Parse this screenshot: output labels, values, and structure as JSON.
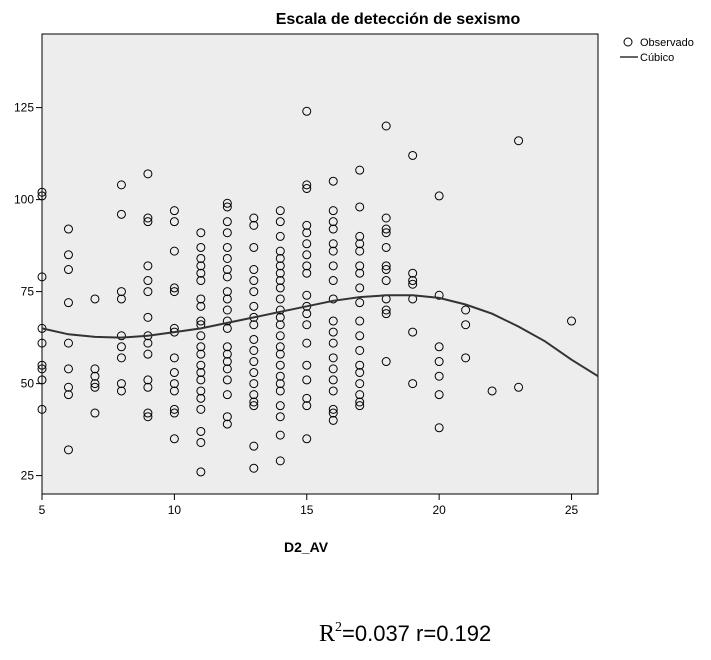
{
  "chart_data": {
    "type": "scatter",
    "title": "Escala de detección de sexismo",
    "xlabel": "D2_AV",
    "ylabel": "",
    "xlim": [
      5,
      26
    ],
    "ylim": [
      20,
      145
    ],
    "xticks": [
      5,
      10,
      15,
      20,
      25
    ],
    "yticks": [
      25,
      50,
      75,
      100,
      125
    ],
    "grid": false,
    "legend_position": "top-right",
    "legend": [
      {
        "label": "Observado",
        "marker": "circle"
      },
      {
        "label": "Cúbico",
        "marker": "line"
      }
    ],
    "series": [
      {
        "name": "Observado",
        "type": "scatter",
        "points": [
          [
            5,
            102
          ],
          [
            5,
            101
          ],
          [
            5,
            79
          ],
          [
            5,
            65
          ],
          [
            5,
            61
          ],
          [
            5,
            55
          ],
          [
            5,
            54
          ],
          [
            5,
            51
          ],
          [
            5,
            43
          ],
          [
            6,
            92
          ],
          [
            6,
            85
          ],
          [
            6,
            81
          ],
          [
            6,
            72
          ],
          [
            6,
            61
          ],
          [
            6,
            54
          ],
          [
            6,
            49
          ],
          [
            6,
            47
          ],
          [
            6,
            32
          ],
          [
            7,
            73
          ],
          [
            7,
            54
          ],
          [
            7,
            52
          ],
          [
            7,
            50
          ],
          [
            7,
            49
          ],
          [
            7,
            42
          ],
          [
            8,
            104
          ],
          [
            8,
            96
          ],
          [
            8,
            75
          ],
          [
            8,
            73
          ],
          [
            8,
            63
          ],
          [
            8,
            60
          ],
          [
            8,
            57
          ],
          [
            8,
            50
          ],
          [
            8,
            48
          ],
          [
            9,
            107
          ],
          [
            9,
            95
          ],
          [
            9,
            94
          ],
          [
            9,
            82
          ],
          [
            9,
            78
          ],
          [
            9,
            75
          ],
          [
            9,
            68
          ],
          [
            9,
            63
          ],
          [
            9,
            61
          ],
          [
            9,
            58
          ],
          [
            9,
            51
          ],
          [
            9,
            49
          ],
          [
            9,
            42
          ],
          [
            9,
            41
          ],
          [
            10,
            97
          ],
          [
            10,
            94
          ],
          [
            10,
            86
          ],
          [
            10,
            76
          ],
          [
            10,
            75
          ],
          [
            10,
            65
          ],
          [
            10,
            64
          ],
          [
            10,
            57
          ],
          [
            10,
            53
          ],
          [
            10,
            50
          ],
          [
            10,
            48
          ],
          [
            10,
            43
          ],
          [
            10,
            42
          ],
          [
            10,
            35
          ],
          [
            11,
            91
          ],
          [
            11,
            87
          ],
          [
            11,
            84
          ],
          [
            11,
            82
          ],
          [
            11,
            80
          ],
          [
            11,
            78
          ],
          [
            11,
            73
          ],
          [
            11,
            71
          ],
          [
            11,
            67
          ],
          [
            11,
            66
          ],
          [
            11,
            63
          ],
          [
            11,
            60
          ],
          [
            11,
            58
          ],
          [
            11,
            55
          ],
          [
            11,
            53
          ],
          [
            11,
            51
          ],
          [
            11,
            48
          ],
          [
            11,
            46
          ],
          [
            11,
            43
          ],
          [
            11,
            37
          ],
          [
            11,
            34
          ],
          [
            11,
            26
          ],
          [
            12,
            99
          ],
          [
            12,
            98
          ],
          [
            12,
            94
          ],
          [
            12,
            91
          ],
          [
            12,
            87
          ],
          [
            12,
            84
          ],
          [
            12,
            81
          ],
          [
            12,
            79
          ],
          [
            12,
            75
          ],
          [
            12,
            73
          ],
          [
            12,
            70
          ],
          [
            12,
            67
          ],
          [
            12,
            65
          ],
          [
            12,
            60
          ],
          [
            12,
            58
          ],
          [
            12,
            56
          ],
          [
            12,
            54
          ],
          [
            12,
            51
          ],
          [
            12,
            47
          ],
          [
            12,
            41
          ],
          [
            12,
            39
          ],
          [
            13,
            95
          ],
          [
            13,
            93
          ],
          [
            13,
            87
          ],
          [
            13,
            81
          ],
          [
            13,
            78
          ],
          [
            13,
            75
          ],
          [
            13,
            71
          ],
          [
            13,
            68
          ],
          [
            13,
            66
          ],
          [
            13,
            62
          ],
          [
            13,
            59
          ],
          [
            13,
            56
          ],
          [
            13,
            53
          ],
          [
            13,
            50
          ],
          [
            13,
            47
          ],
          [
            13,
            45
          ],
          [
            13,
            44
          ],
          [
            13,
            33
          ],
          [
            13,
            27
          ],
          [
            14,
            97
          ],
          [
            14,
            94
          ],
          [
            14,
            90
          ],
          [
            14,
            86
          ],
          [
            14,
            84
          ],
          [
            14,
            82
          ],
          [
            14,
            80
          ],
          [
            14,
            78
          ],
          [
            14,
            76
          ],
          [
            14,
            73
          ],
          [
            14,
            70
          ],
          [
            14,
            68
          ],
          [
            14,
            66
          ],
          [
            14,
            63
          ],
          [
            14,
            60
          ],
          [
            14,
            58
          ],
          [
            14,
            55
          ],
          [
            14,
            52
          ],
          [
            14,
            50
          ],
          [
            14,
            48
          ],
          [
            14,
            44
          ],
          [
            14,
            41
          ],
          [
            14,
            36
          ],
          [
            14,
            29
          ],
          [
            15,
            124
          ],
          [
            15,
            104
          ],
          [
            15,
            103
          ],
          [
            15,
            93
          ],
          [
            15,
            91
          ],
          [
            15,
            88
          ],
          [
            15,
            85
          ],
          [
            15,
            82
          ],
          [
            15,
            80
          ],
          [
            15,
            74
          ],
          [
            15,
            71
          ],
          [
            15,
            69
          ],
          [
            15,
            66
          ],
          [
            15,
            61
          ],
          [
            15,
            55
          ],
          [
            15,
            51
          ],
          [
            15,
            46
          ],
          [
            15,
            44
          ],
          [
            15,
            35
          ],
          [
            16,
            105
          ],
          [
            16,
            97
          ],
          [
            16,
            94
          ],
          [
            16,
            92
          ],
          [
            16,
            88
          ],
          [
            16,
            86
          ],
          [
            16,
            82
          ],
          [
            16,
            78
          ],
          [
            16,
            73
          ],
          [
            16,
            67
          ],
          [
            16,
            64
          ],
          [
            16,
            61
          ],
          [
            16,
            57
          ],
          [
            16,
            54
          ],
          [
            16,
            51
          ],
          [
            16,
            48
          ],
          [
            16,
            43
          ],
          [
            16,
            42
          ],
          [
            16,
            40
          ],
          [
            17,
            108
          ],
          [
            17,
            98
          ],
          [
            17,
            90
          ],
          [
            17,
            88
          ],
          [
            17,
            86
          ],
          [
            17,
            82
          ],
          [
            17,
            80
          ],
          [
            17,
            76
          ],
          [
            17,
            72
          ],
          [
            17,
            67
          ],
          [
            17,
            63
          ],
          [
            17,
            59
          ],
          [
            17,
            55
          ],
          [
            17,
            53
          ],
          [
            17,
            50
          ],
          [
            17,
            47
          ],
          [
            17,
            45
          ],
          [
            17,
            44
          ],
          [
            18,
            120
          ],
          [
            18,
            95
          ],
          [
            18,
            92
          ],
          [
            18,
            91
          ],
          [
            18,
            87
          ],
          [
            18,
            82
          ],
          [
            18,
            81
          ],
          [
            18,
            78
          ],
          [
            18,
            73
          ],
          [
            18,
            70
          ],
          [
            18,
            69
          ],
          [
            18,
            56
          ],
          [
            19,
            112
          ],
          [
            19,
            80
          ],
          [
            19,
            78
          ],
          [
            19,
            77
          ],
          [
            19,
            73
          ],
          [
            19,
            64
          ],
          [
            19,
            50
          ],
          [
            20,
            101
          ],
          [
            20,
            74
          ],
          [
            20,
            60
          ],
          [
            20,
            56
          ],
          [
            20,
            52
          ],
          [
            20,
            47
          ],
          [
            20,
            38
          ],
          [
            21,
            70
          ],
          [
            21,
            66
          ],
          [
            21,
            57
          ],
          [
            22,
            48
          ],
          [
            23,
            116
          ],
          [
            23,
            49
          ],
          [
            25,
            67
          ]
        ]
      },
      {
        "name": "Cúbico",
        "type": "line",
        "points": [
          [
            5,
            65
          ],
          [
            6,
            63.4
          ],
          [
            7,
            62.7
          ],
          [
            8,
            62.5
          ],
          [
            9,
            63
          ],
          [
            10,
            64
          ],
          [
            11,
            65
          ],
          [
            12,
            66.5
          ],
          [
            13,
            68
          ],
          [
            14,
            69.5
          ],
          [
            15,
            71
          ],
          [
            16,
            72.5
          ],
          [
            17,
            73.5
          ],
          [
            18,
            74
          ],
          [
            19,
            74
          ],
          [
            20,
            73.3
          ],
          [
            21,
            71.5
          ],
          [
            22,
            69
          ],
          [
            23,
            65.5
          ],
          [
            24,
            61.5
          ],
          [
            25,
            56.5
          ],
          [
            26,
            52
          ]
        ]
      }
    ]
  },
  "stats": {
    "r2_symbol": "R",
    "r2_exp": "2",
    "r2_text": "=0.037  r=0.192"
  }
}
